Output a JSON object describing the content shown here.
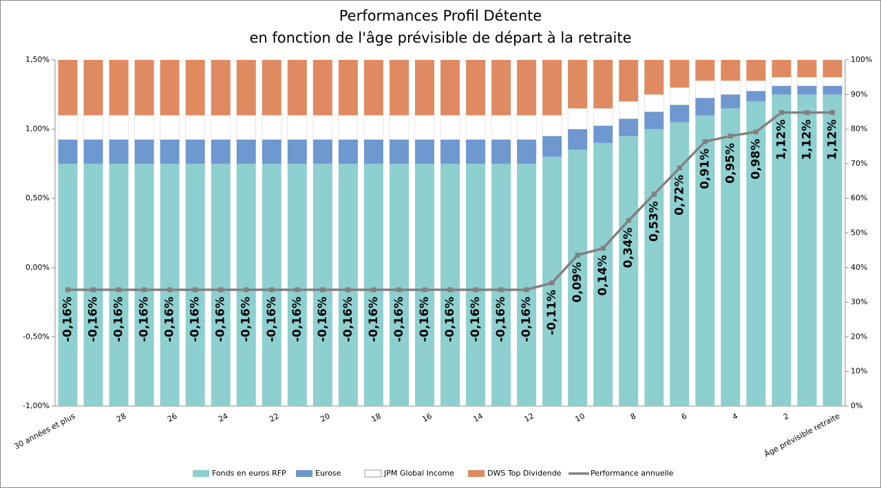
{
  "chart_data": {
    "type": "bar+line",
    "title": "Performances Profil Détente",
    "subtitle": "en fonction de l'âge prévisible de départ à la retraite",
    "categories": [
      "30 années et plus",
      null,
      "28",
      null,
      "26",
      null,
      "24",
      null,
      "22",
      null,
      "20",
      null,
      "18",
      null,
      "16",
      null,
      "14",
      null,
      "12",
      null,
      "10",
      null,
      "8",
      null,
      "6",
      null,
      "4",
      null,
      "2",
      null,
      "Âge prévisible retraite"
    ],
    "series": [
      {
        "name": "Fonds en euros RFP",
        "color": "#8ecfcf",
        "axis": "y2",
        "type": "bar",
        "values": [
          70,
          70,
          70,
          70,
          70,
          70,
          70,
          70,
          70,
          70,
          70,
          70,
          70,
          70,
          70,
          70,
          70,
          70,
          70,
          72,
          74,
          76,
          78,
          80,
          82,
          84,
          86,
          88,
          90,
          90,
          90
        ]
      },
      {
        "name": "Eurose",
        "color": "#6f97d0",
        "axis": "y2",
        "type": "bar",
        "values": [
          7,
          7,
          7,
          7,
          7,
          7,
          7,
          7,
          7,
          7,
          7,
          7,
          7,
          7,
          7,
          7,
          7,
          7,
          7,
          6,
          6,
          5,
          5,
          5,
          5,
          5,
          4,
          3,
          2.5,
          2.5,
          2.5
        ]
      },
      {
        "name": "JPM Global Income",
        "color": "#ffffff",
        "axis": "y2",
        "type": "bar",
        "values": [
          7,
          7,
          7,
          7,
          7,
          7,
          7,
          7,
          7,
          7,
          7,
          7,
          7,
          7,
          7,
          7,
          7,
          7,
          7,
          6,
          6,
          5,
          5,
          5,
          5,
          5,
          4,
          3,
          2.5,
          2.5,
          2.5
        ]
      },
      {
        "name": "DWS Top Dividende",
        "color": "#e08a62",
        "axis": "y2",
        "type": "bar",
        "values": [
          16,
          16,
          16,
          16,
          16,
          16,
          16,
          16,
          16,
          16,
          16,
          16,
          16,
          16,
          16,
          16,
          16,
          16,
          16,
          16,
          14,
          14,
          12,
          10,
          8,
          6,
          6,
          6,
          5,
          5,
          5
        ]
      },
      {
        "name": "Performance annuelle",
        "color": "#808080",
        "type": "line",
        "values": [
          -0.16,
          -0.16,
          -0.16,
          -0.16,
          -0.16,
          -0.16,
          -0.16,
          -0.16,
          -0.16,
          -0.16,
          -0.16,
          -0.16,
          -0.16,
          -0.16,
          -0.16,
          -0.16,
          -0.16,
          -0.16,
          -0.16,
          -0.11,
          0.09,
          0.14,
          0.34,
          0.53,
          0.72,
          0.91,
          0.95,
          0.98,
          1.12,
          1.12,
          1.12
        ],
        "value_labels": [
          "-0,16%",
          "-0,16%",
          "-0,16%",
          "-0,16%",
          "-0,16%",
          "-0,16%",
          "-0,16%",
          "-0,16%",
          "-0,16%",
          "-0,16%",
          "-0,16%",
          "-0,16%",
          "-0,16%",
          "-0,16%",
          "-0,16%",
          "-0,16%",
          "-0,16%",
          "-0,16%",
          "-0,16%",
          "-0,11%",
          "0,09%",
          "0,14%",
          "0,34%",
          "0,53%",
          "0,72%",
          "0,91%",
          "0,95%",
          "0,98%",
          "1,12%",
          "1,12%",
          "1,12%"
        ]
      }
    ],
    "ylim": [
      -1.0,
      1.5
    ],
    "yticks": [
      {
        "value": -1.0,
        "label": "-1,00%"
      },
      {
        "value": -0.5,
        "label": "-0,50%"
      },
      {
        "value": 0,
        "label": "0,00%"
      },
      {
        "value": 0.5,
        "label": "0,50%"
      },
      {
        "value": 1.0,
        "label": "1,00%"
      },
      {
        "value": 1.5,
        "label": "1,50%"
      }
    ],
    "y2lim": [
      0,
      100
    ],
    "y2ticks": [
      {
        "value": 0,
        "label": "0%"
      },
      {
        "value": 10,
        "label": "10%"
      },
      {
        "value": 20,
        "label": "20%"
      },
      {
        "value": 30,
        "label": "30%"
      },
      {
        "value": 40,
        "label": "40%"
      },
      {
        "value": 50,
        "label": "50%"
      },
      {
        "value": 60,
        "label": "60%"
      },
      {
        "value": 70,
        "label": "70%"
      },
      {
        "value": 80,
        "label": "80%"
      },
      {
        "value": 90,
        "label": "90%"
      },
      {
        "value": 100,
        "label": "100%"
      }
    ],
    "legend": "bottom"
  }
}
